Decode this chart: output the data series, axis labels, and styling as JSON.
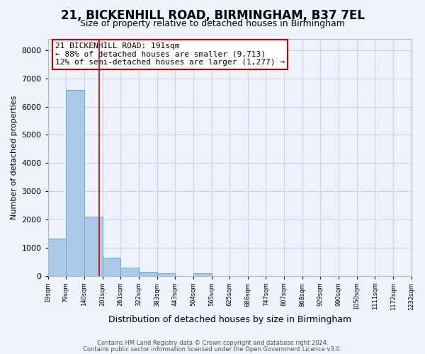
{
  "title": "21, BICKENHILL ROAD, BIRMINGHAM, B37 7EL",
  "subtitle": "Size of property relative to detached houses in Birmingham",
  "xlabel": "Distribution of detached houses by size in Birmingham",
  "ylabel": "Number of detached properties",
  "bar_values": [
    1320,
    6600,
    2090,
    640,
    300,
    140,
    100,
    0,
    100,
    0,
    0,
    0,
    0,
    0,
    0,
    0,
    0,
    0,
    0,
    0
  ],
  "bin_edges": [
    19,
    79,
    140,
    201,
    261,
    322,
    383,
    443,
    504,
    565,
    625,
    686,
    747,
    807,
    868,
    929,
    990,
    1050,
    1111,
    1172,
    1232
  ],
  "bar_color": "#adc9e8",
  "bar_edge_color": "#6aaad4",
  "property_line_x": 191,
  "ylim": [
    0,
    8400
  ],
  "yticks": [
    0,
    1000,
    2000,
    3000,
    4000,
    5000,
    6000,
    7000,
    8000
  ],
  "tick_labels": [
    "19sqm",
    "79sqm",
    "140sqm",
    "201sqm",
    "261sqm",
    "322sqm",
    "383sqm",
    "443sqm",
    "504sqm",
    "565sqm",
    "625sqm",
    "686sqm",
    "747sqm",
    "807sqm",
    "868sqm",
    "929sqm",
    "990sqm",
    "1050sqm",
    "1111sqm",
    "1172sqm",
    "1232sqm"
  ],
  "annotation_title": "21 BICKENHILL ROAD: 191sqm",
  "annotation_line1": "← 88% of detached houses are smaller (9,713)",
  "annotation_line2": "12% of semi-detached houses are larger (1,277) →",
  "annotation_box_color": "#ffffff",
  "annotation_box_edge_color": "#cc0000",
  "red_line_color": "#cc0000",
  "grid_color": "#c8d4e8",
  "bg_color": "#eef2fa",
  "title_fontsize": 12,
  "subtitle_fontsize": 9,
  "footer1": "Contains HM Land Registry data © Crown copyright and database right 2024.",
  "footer2": "Contains public sector information licensed under the Open Government Licence v3.0."
}
